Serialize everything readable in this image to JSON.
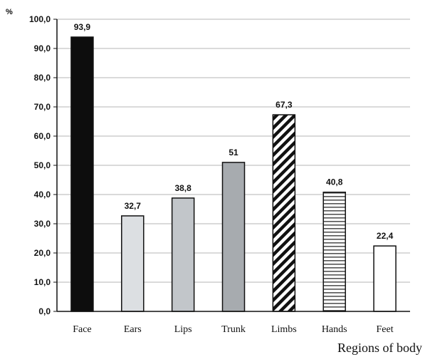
{
  "chart_data": {
    "type": "bar",
    "categories": [
      "Face",
      "Ears",
      "Lips",
      "Trunk",
      "Limbs",
      "Hands",
      "Feet"
    ],
    "values": [
      93.9,
      32.7,
      38.8,
      51,
      67.3,
      40.8,
      22.4
    ],
    "data_labels": [
      "93,9",
      "32,7",
      "38,8",
      "51",
      "67,3",
      "40,8",
      "22,4"
    ],
    "bar_styles": [
      {
        "fill": "#0d0d0d",
        "pattern": "solid"
      },
      {
        "fill": "#dcdfe2",
        "pattern": "solid"
      },
      {
        "fill": "#c2c6ca",
        "pattern": "solid"
      },
      {
        "fill": "#a7abaf",
        "pattern": "solid"
      },
      {
        "fill": "#ffffff",
        "pattern": "diagonal"
      },
      {
        "fill": "#ffffff",
        "pattern": "horizontal"
      },
      {
        "fill": "#ffffff",
        "pattern": "solid"
      }
    ],
    "y_ticks": [
      0,
      10,
      20,
      30,
      40,
      50,
      60,
      70,
      80,
      90,
      100
    ],
    "y_tick_labels": [
      "0,0",
      "10,0",
      "20,0",
      "30,0",
      "40,0",
      "50,0",
      "60,0",
      "70,0",
      "80,0",
      "90,0",
      "100,0"
    ],
    "ylim": [
      0,
      100
    ],
    "ylabel": "%",
    "xlabel": "Regions of body",
    "title": "",
    "grid": true,
    "legend": "none"
  }
}
